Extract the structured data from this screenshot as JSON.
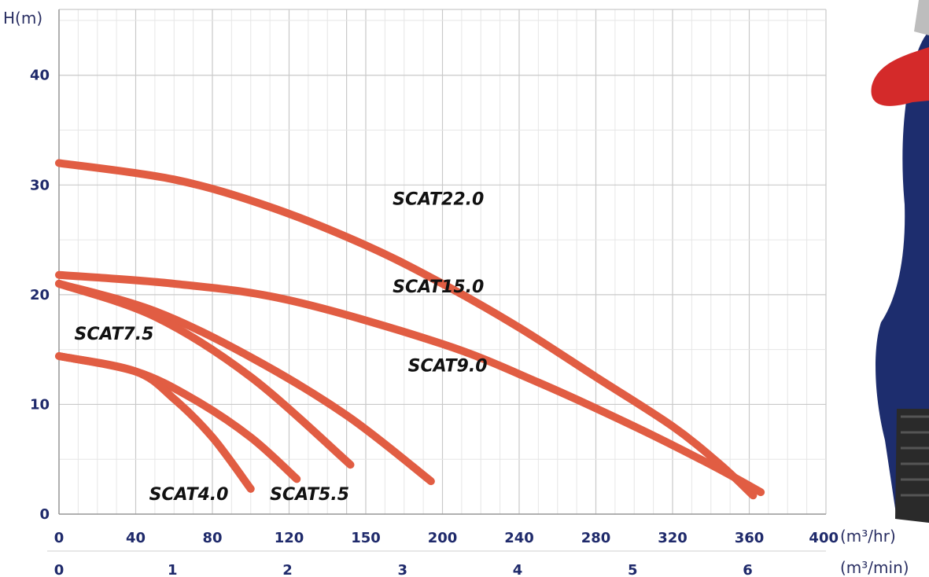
{
  "chart_data": {
    "type": "line",
    "ylabel": "H(m)",
    "x_unit_primary": "(m³/hr)",
    "x_unit_secondary": "(m³/min)",
    "x_ticks_primary": [
      "0",
      "40",
      "80",
      "120",
      "150",
      "200",
      "240",
      "280",
      "320",
      "360",
      "400"
    ],
    "x_ticks_secondary": [
      "0",
      "1",
      "2",
      "3",
      "4",
      "5",
      "6"
    ],
    "y_ticks": [
      "0",
      "10",
      "20",
      "30",
      "40"
    ],
    "ylim": [
      0,
      46
    ],
    "grid": true,
    "curve_color": "#e15d43",
    "series": [
      {
        "name": "SCAT22.0",
        "x": [
          0,
          60,
          110,
          160,
          200,
          240,
          280,
          320,
          345,
          362
        ],
        "y": [
          32,
          30.5,
          28,
          24.5,
          21,
          17,
          12.5,
          8,
          4.5,
          1.7
        ]
      },
      {
        "name": "SCAT15.0",
        "x": [
          0,
          60,
          120,
          200,
          250,
          300,
          340,
          366
        ],
        "y": [
          21.8,
          21,
          19.5,
          15.5,
          12,
          8,
          4.5,
          2
        ]
      },
      {
        "name": "SCAT9.0",
        "x": [
          0,
          50,
          100,
          150,
          194
        ],
        "y": [
          21,
          18.5,
          14.3,
          9,
          3
        ]
      },
      {
        "name": "SCAT7.5",
        "x": [
          0,
          50,
          100,
          152
        ],
        "y": [
          21,
          18,
          12.5,
          4.5
        ]
      },
      {
        "name": "SCAT5.5",
        "x": [
          0,
          40,
          70,
          100,
          124
        ],
        "y": [
          14.4,
          13,
          10.5,
          7,
          3.2
        ]
      },
      {
        "name": "SCAT4.0",
        "x": [
          0,
          40,
          60,
          80,
          100
        ],
        "y": [
          14.4,
          13,
          10.5,
          7,
          2.3
        ]
      }
    ],
    "label_positions": {
      "SCAT22.0": [
        174,
        28.2
      ],
      "SCAT15.0": [
        174,
        20.2
      ],
      "SCAT9.0": [
        182,
        13
      ],
      "SCAT7.5": [
        8,
        15.9
      ],
      "SCAT5.5": [
        110,
        1.3
      ],
      "SCAT4.0": [
        47,
        1.3
      ]
    }
  }
}
